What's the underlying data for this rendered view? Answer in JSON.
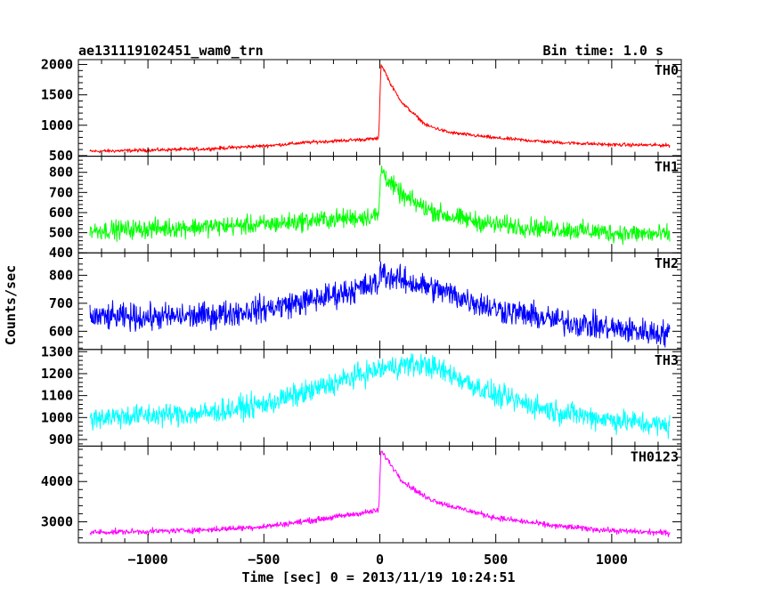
{
  "chart_data": {
    "type": "line",
    "title_left": "ae131119102451_wam0_trn",
    "title_right": "Bin time: 1.0 s",
    "xlabel": "Time [sec] 0 = 2013/11/19 10:24:51",
    "ylabel": "Counts/sec",
    "xlim": [
      -1300,
      1300
    ],
    "xticks": [
      -1000,
      -500,
      0,
      500,
      1000
    ],
    "xtick_labels": [
      "−1000",
      "−500",
      "0",
      "500",
      "1000"
    ],
    "panels": [
      {
        "name": "TH0",
        "color": "#ff0000",
        "ylim": [
          490,
          2080
        ],
        "yticks": [
          500,
          1000,
          1500,
          2000
        ],
        "ytick_labels": [
          "500",
          "1000",
          "1500",
          "2000"
        ],
        "x": [
          -1250,
          -1000,
          -750,
          -500,
          -300,
          -100,
          -5,
          5,
          20,
          50,
          100,
          200,
          300,
          500,
          750,
          1000,
          1250
        ],
        "y": [
          570,
          590,
          610,
          660,
          720,
          760,
          780,
          2000,
          1900,
          1650,
          1350,
          1000,
          880,
          790,
          720,
          680,
          670
        ],
        "noise": 25
      },
      {
        "name": "TH1",
        "color": "#00ff00",
        "ylim": [
          400,
          880
        ],
        "yticks": [
          400,
          500,
          600,
          700,
          800
        ],
        "ytick_labels": [
          "400",
          "500",
          "600",
          "700",
          "800"
        ],
        "x": [
          -1250,
          -1000,
          -750,
          -500,
          -300,
          -100,
          -5,
          5,
          20,
          50,
          100,
          200,
          300,
          500,
          750,
          1000,
          1250
        ],
        "y": [
          510,
          520,
          530,
          540,
          560,
          575,
          585,
          820,
          790,
          740,
          680,
          620,
          580,
          540,
          520,
          500,
          490
        ],
        "noise": 40
      },
      {
        "name": "TH2",
        "color": "#0000ff",
        "ylim": [
          535,
          880
        ],
        "yticks": [
          600,
          700,
          800
        ],
        "ytick_labels": [
          "600",
          "700",
          "800"
        ],
        "x": [
          -1250,
          -1000,
          -750,
          -500,
          -300,
          -100,
          -5,
          5,
          30,
          100,
          200,
          300,
          500,
          750,
          1000,
          1250
        ],
        "y": [
          650,
          650,
          655,
          680,
          710,
          750,
          770,
          820,
          800,
          780,
          760,
          735,
          680,
          640,
          610,
          590
        ],
        "noise": 40
      },
      {
        "name": "TH3",
        "color": "#00ffff",
        "ylim": [
          870,
          1310
        ],
        "yticks": [
          900,
          1000,
          1100,
          1200,
          1300
        ],
        "ytick_labels": [
          "900",
          "1000",
          "1100",
          "1200",
          "1300"
        ],
        "x": [
          -1250,
          -1000,
          -750,
          -500,
          -300,
          -100,
          0,
          100,
          200,
          300,
          500,
          750,
          1000,
          1250
        ],
        "y": [
          1000,
          1010,
          1020,
          1060,
          1120,
          1190,
          1220,
          1240,
          1240,
          1200,
          1100,
          1030,
          990,
          960
        ],
        "noise": 45
      },
      {
        "name": "TH0123",
        "color": "#ff00ff",
        "ylim": [
          2480,
          4880
        ],
        "yticks": [
          3000,
          4000
        ],
        "ytick_labels": [
          "3000",
          "4000"
        ],
        "x": [
          -1250,
          -1000,
          -750,
          -500,
          -300,
          -100,
          -5,
          5,
          20,
          50,
          100,
          200,
          300,
          500,
          750,
          1000,
          1250
        ],
        "y": [
          2740,
          2760,
          2800,
          2880,
          3030,
          3200,
          3280,
          4750,
          4650,
          4400,
          4000,
          3600,
          3400,
          3100,
          2900,
          2780,
          2720
        ],
        "noise": 60
      }
    ]
  }
}
